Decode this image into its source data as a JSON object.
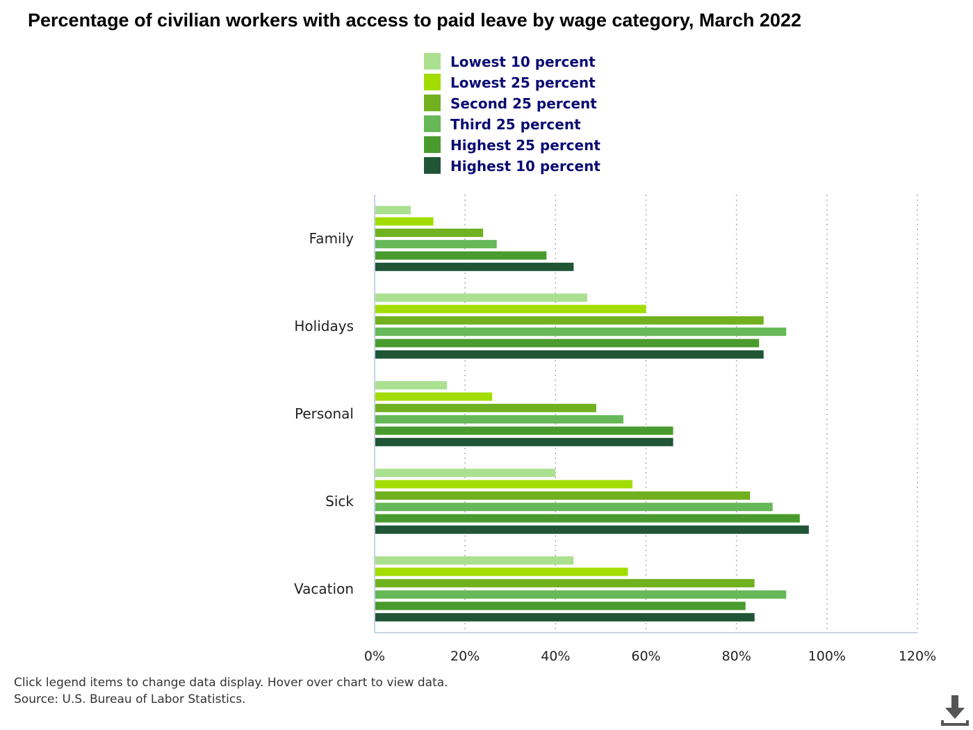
{
  "title": "Percentage of civilian workers with access to paid leave by wage category, March 2022",
  "footnote_interaction": "Click legend items to change data display. Hover over chart to view data.",
  "footnote_source": "Source: U.S. Bureau of Labor Statistics.",
  "download_icon": "download-icon",
  "colors": {
    "axis": "#c7d2e6",
    "grid": "#b0b0b0",
    "tick_text": "#222222",
    "legend_text": "#0b0b73"
  },
  "chart_data": {
    "type": "bar",
    "orientation": "horizontal",
    "title": "Percentage of civilian workers with access to paid leave by wage category, March 2022",
    "categories": [
      "Family",
      "Holidays",
      "Personal",
      "Sick",
      "Vacation"
    ],
    "xlim": [
      0,
      120
    ],
    "x_ticks": [
      "0%",
      "20%",
      "40%",
      "60%",
      "80%",
      "100%",
      "120%"
    ],
    "x_tick_values": [
      0,
      20,
      40,
      60,
      80,
      100,
      120
    ],
    "grid": "vertical dotted",
    "legend_position": "top",
    "series": [
      {
        "name": "Lowest 10 percent",
        "color": "#abe090",
        "values": [
          8,
          47,
          16,
          40,
          44
        ]
      },
      {
        "name": "Lowest 25 percent",
        "color": "#a3dd00",
        "values": [
          13,
          60,
          26,
          57,
          56
        ]
      },
      {
        "name": "Second 25 percent",
        "color": "#71b01f",
        "values": [
          24,
          86,
          49,
          83,
          84
        ]
      },
      {
        "name": "Third 25 percent",
        "color": "#66b858",
        "values": [
          27,
          91,
          55,
          88,
          91
        ]
      },
      {
        "name": "Highest 25 percent",
        "color": "#4a9b2d",
        "values": [
          38,
          85,
          66,
          94,
          82
        ]
      },
      {
        "name": "Highest 10 percent",
        "color": "#205536",
        "values": [
          44,
          86,
          66,
          96,
          84
        ]
      }
    ]
  }
}
